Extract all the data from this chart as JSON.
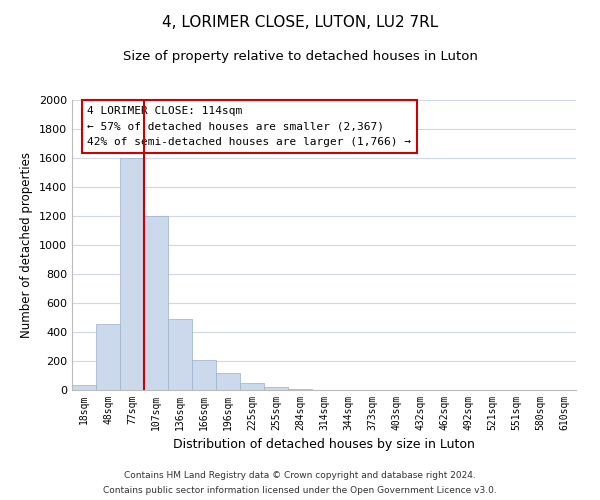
{
  "title": "4, LORIMER CLOSE, LUTON, LU2 7RL",
  "subtitle": "Size of property relative to detached houses in Luton",
  "xlabel": "Distribution of detached houses by size in Luton",
  "ylabel": "Number of detached properties",
  "bar_labels": [
    "18sqm",
    "48sqm",
    "77sqm",
    "107sqm",
    "136sqm",
    "166sqm",
    "196sqm",
    "225sqm",
    "255sqm",
    "284sqm",
    "314sqm",
    "344sqm",
    "373sqm",
    "403sqm",
    "432sqm",
    "462sqm",
    "492sqm",
    "521sqm",
    "551sqm",
    "580sqm",
    "610sqm"
  ],
  "bar_values": [
    35,
    455,
    1600,
    1200,
    490,
    210,
    120,
    45,
    20,
    5,
    0,
    0,
    0,
    0,
    0,
    0,
    0,
    0,
    0,
    0,
    0
  ],
  "bar_color": "#ccd9ed",
  "bar_edge_color": "#9ab0cc",
  "vline_x": 3.0,
  "vline_color": "#cc0000",
  "ylim": [
    0,
    2000
  ],
  "yticks": [
    0,
    200,
    400,
    600,
    800,
    1000,
    1200,
    1400,
    1600,
    1800,
    2000
  ],
  "annotation_title": "4 LORIMER CLOSE: 114sqm",
  "annotation_line1": "← 57% of detached houses are smaller (2,367)",
  "annotation_line2": "42% of semi-detached houses are larger (1,766) →",
  "annotation_box_color": "#ffffff",
  "annotation_box_edgecolor": "#cc0000",
  "footer_line1": "Contains HM Land Registry data © Crown copyright and database right 2024.",
  "footer_line2": "Contains public sector information licensed under the Open Government Licence v3.0.",
  "background_color": "#ffffff",
  "grid_color": "#d0d8e8",
  "title_fontsize": 11,
  "subtitle_fontsize": 9.5
}
